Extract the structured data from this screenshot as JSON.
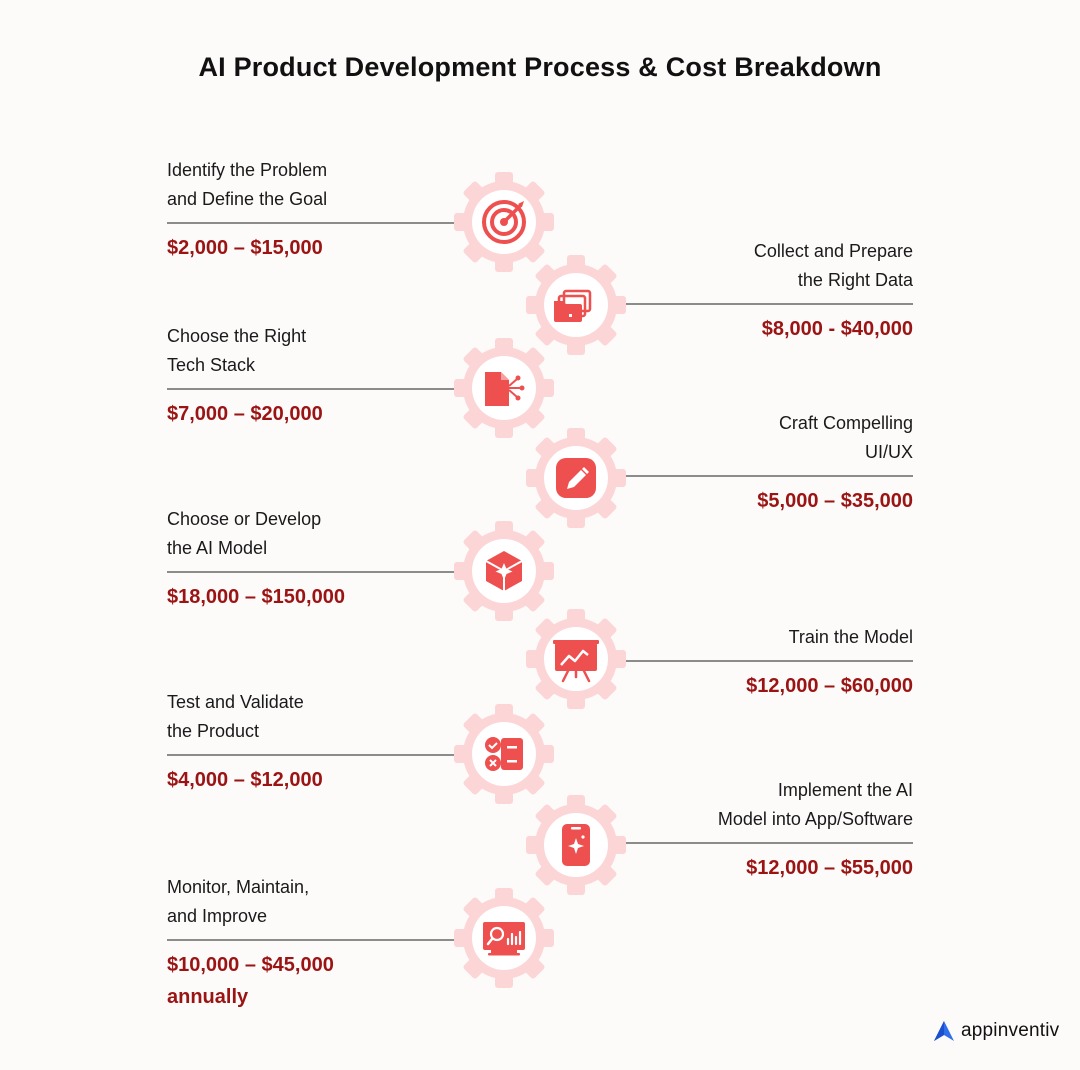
{
  "title": "AI Product Development Process & Cost Breakdown",
  "steps": [
    {
      "label": "Identify the Problem\nand Define the Goal",
      "cost": "$2,000 – $15,000",
      "icon": "target-icon"
    },
    {
      "label": "Collect and Prepare\nthe Right Data",
      "cost": "$8,000 - $40,000",
      "icon": "folders-icon"
    },
    {
      "label": "Choose the Right\nTech Stack",
      "cost": "$7,000 – $20,000",
      "icon": "document-network-icon"
    },
    {
      "label": "Craft Compelling\nUI/UX",
      "cost": "$5,000 – $35,000",
      "icon": "pencil-icon"
    },
    {
      "label": "Choose or Develop\nthe AI Model",
      "cost": "$18,000 – $150,000",
      "icon": "ai-cube-icon"
    },
    {
      "label": "Train the Model",
      "cost": "$12,000 – $60,000",
      "icon": "presentation-chart-icon"
    },
    {
      "label": "Test and Validate\nthe Product",
      "cost": " $4,000 – $12,000",
      "icon": "checklist-icon"
    },
    {
      "label": "Implement the AI\nModel into App/Software",
      "cost": "$12,000 – $55,000",
      "icon": "smartphone-ai-icon"
    },
    {
      "label": "Monitor, Maintain,\nand Improve",
      "cost": "$10,000 – $45,000\nannually",
      "icon": "monitor-analytics-icon"
    }
  ],
  "brand": {
    "name": "appinventiv"
  },
  "colors": {
    "accent": "#ee4f4f",
    "gear": "#fcd6d6",
    "cost": "#9b1414"
  }
}
